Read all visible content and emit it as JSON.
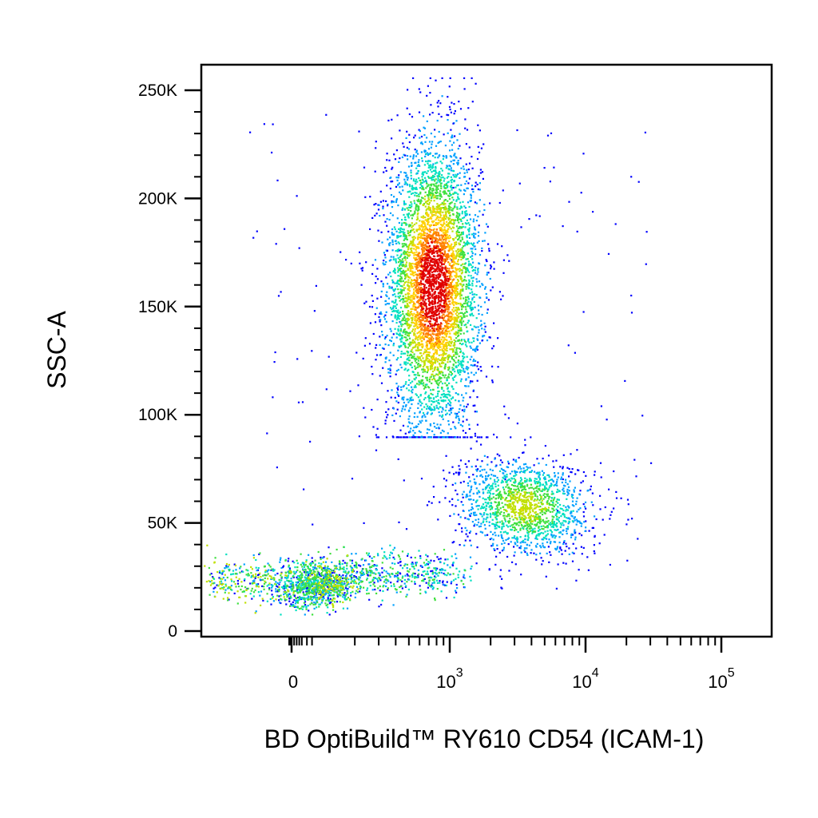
{
  "chart_data": {
    "type": "scatter",
    "style": "density (pseudocolor)",
    "xlabel": "BD OptiBuild™ RY610 CD54 (ICAM-1)",
    "ylabel": "SSC-A",
    "x_scale": "biexponential (log with linear region near 0)",
    "y_scale": "linear",
    "ylim": [
      0,
      262144
    ],
    "yticks": [
      {
        "value": 0,
        "label": "0"
      },
      {
        "value": 50000,
        "label": "50K"
      },
      {
        "value": 100000,
        "label": "100K"
      },
      {
        "value": 150000,
        "label": "150K"
      },
      {
        "value": 200000,
        "label": "200K"
      },
      {
        "value": 250000,
        "label": "250K"
      }
    ],
    "xticks": [
      {
        "value": 0,
        "label": "0"
      },
      {
        "value": 1000,
        "label": "10",
        "exp": "3"
      },
      {
        "value": 10000,
        "label": "10",
        "exp": "4"
      },
      {
        "value": 100000,
        "label": "10",
        "exp": "5"
      }
    ],
    "density_colors": [
      "#0000ff",
      "#00a0ff",
      "#00e0c0",
      "#40e040",
      "#c0e000",
      "#ffd000",
      "#ff8000",
      "#e00000"
    ],
    "populations": [
      {
        "x_center": 750,
        "x_spread_decades": 0.17,
        "y_center": 160000,
        "y_spread": 33000,
        "y_min": 90000,
        "y_max": 256000,
        "share": 0.55
      },
      {
        "x_center": 3500,
        "x_spread_decades": 0.2,
        "y_center": 58000,
        "y_spread": 11000,
        "y_min": 20000,
        "y_max": 90000,
        "share": 0.17
      },
      {
        "x_center": 0,
        "x_spread_decades": 0.0,
        "y_center": 19000,
        "y_spread": 5000,
        "y_min": 8000,
        "y_max": 40000,
        "share": 0.2
      }
    ],
    "grid": false,
    "legend": "none"
  }
}
